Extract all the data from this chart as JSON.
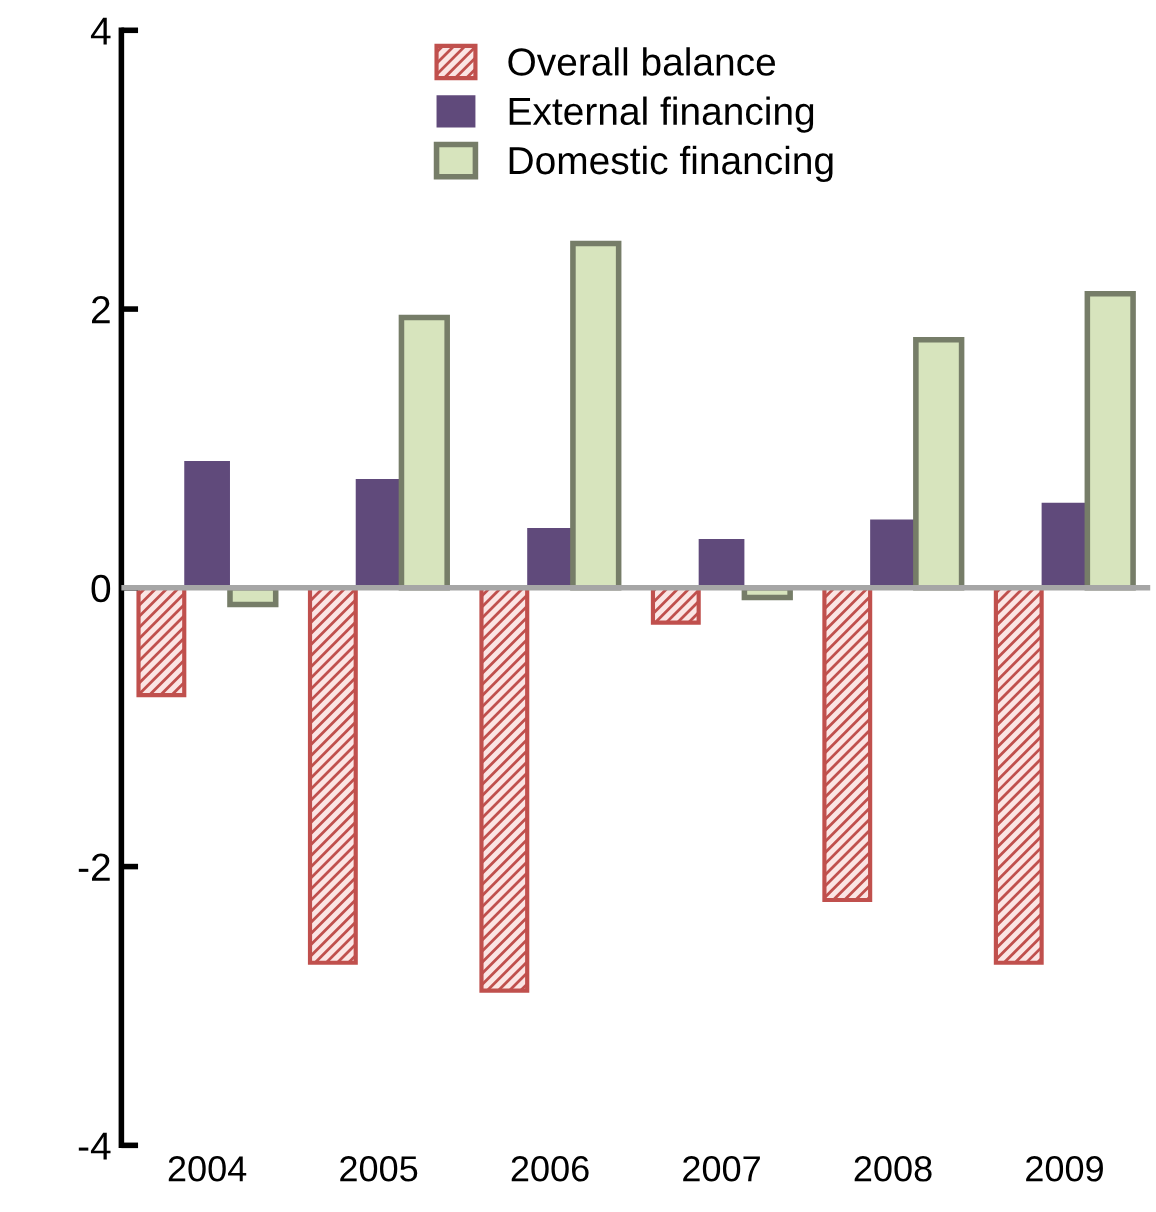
{
  "chart_data": {
    "type": "bar",
    "categories": [
      "2004",
      "2005",
      "2006",
      "2007",
      "2008",
      "2009"
    ],
    "series": [
      {
        "name": "Overall balance",
        "color": "#c0504d",
        "values": [
          -0.77,
          -2.69,
          -2.89,
          -0.25,
          -2.24,
          -2.69
        ]
      },
      {
        "name": "External financing",
        "color": "#604a7b",
        "values": [
          0.91,
          0.78,
          0.43,
          0.35,
          0.49,
          0.61
        ]
      },
      {
        "name": "Domestic financing",
        "color": "#d7e4bd",
        "values": [
          -0.12,
          1.94,
          2.47,
          -0.07,
          1.78,
          2.11
        ]
      }
    ],
    "ylim": [
      -4,
      4
    ],
    "yticks": [
      -4,
      -2,
      0,
      2,
      4
    ],
    "legend": "top"
  }
}
